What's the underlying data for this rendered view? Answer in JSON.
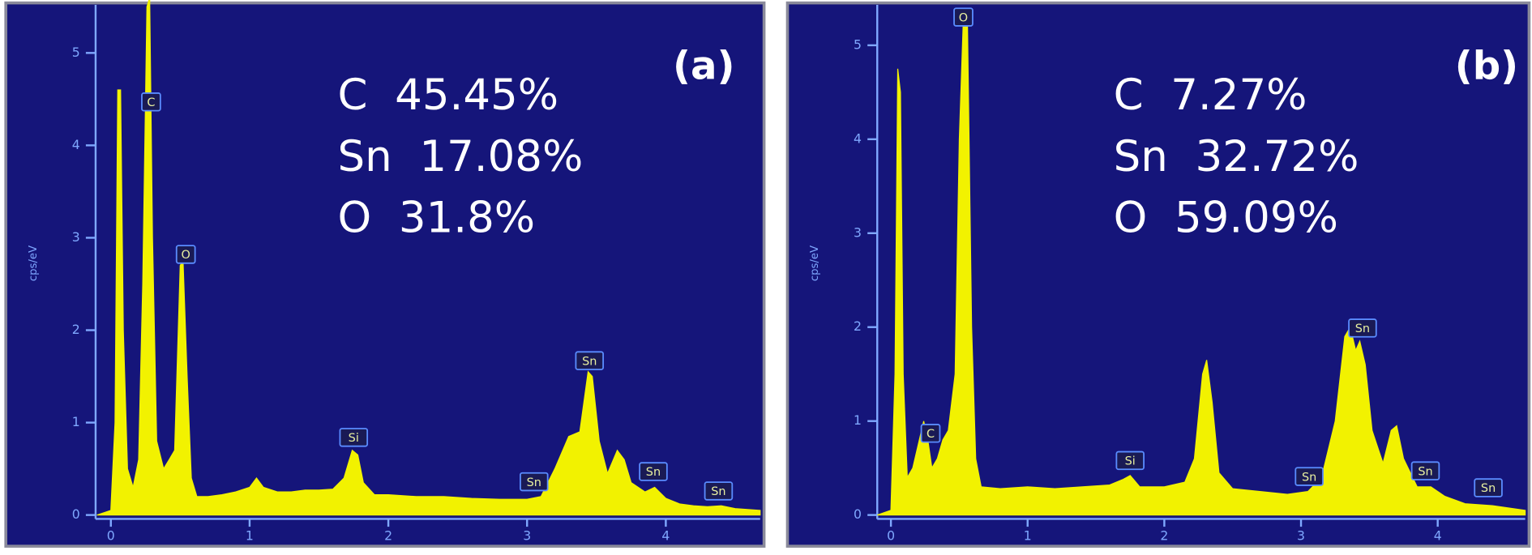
{
  "chart_data": [
    {
      "type": "area",
      "panel_label": "(a)",
      "y_label": "cps/eV",
      "composition": [
        "C  45.45%",
        "Sn  17.08%",
        "O  31.8%"
      ],
      "color": "#f2f200",
      "background": "#15157a",
      "xlim": [
        -0.11,
        4.68
      ],
      "ylim": [
        0,
        5.52
      ],
      "xticks": [
        0,
        1,
        2,
        3,
        4
      ],
      "yticks": [
        0,
        1,
        2,
        3,
        4,
        5
      ],
      "x": [
        -0.1,
        0.0,
        0.03,
        0.05,
        0.07,
        0.09,
        0.12,
        0.16,
        0.2,
        0.23,
        0.26,
        0.28,
        0.3,
        0.33,
        0.38,
        0.42,
        0.46,
        0.5,
        0.52,
        0.55,
        0.58,
        0.62,
        0.7,
        0.8,
        0.9,
        1.0,
        1.05,
        1.1,
        1.2,
        1.3,
        1.4,
        1.5,
        1.6,
        1.68,
        1.74,
        1.78,
        1.82,
        1.9,
        2.0,
        2.2,
        2.4,
        2.6,
        2.8,
        3.0,
        3.1,
        3.2,
        3.3,
        3.38,
        3.44,
        3.47,
        3.52,
        3.58,
        3.65,
        3.7,
        3.75,
        3.85,
        3.92,
        4.0,
        4.1,
        4.2,
        4.3,
        4.4,
        4.5,
        4.68
      ],
      "values": [
        0,
        0.05,
        1,
        4.6,
        4.6,
        2,
        0.5,
        0.3,
        0.6,
        2.5,
        5.5,
        5.6,
        3,
        0.8,
        0.5,
        0.6,
        0.7,
        2.7,
        2.75,
        1.5,
        0.4,
        0.2,
        0.2,
        0.22,
        0.25,
        0.3,
        0.4,
        0.3,
        0.25,
        0.25,
        0.27,
        0.27,
        0.28,
        0.4,
        0.7,
        0.65,
        0.35,
        0.22,
        0.22,
        0.2,
        0.2,
        0.18,
        0.17,
        0.17,
        0.2,
        0.5,
        0.85,
        0.9,
        1.55,
        1.5,
        0.8,
        0.45,
        0.7,
        0.6,
        0.35,
        0.25,
        0.3,
        0.18,
        0.12,
        0.1,
        0.09,
        0.1,
        0.07,
        0.05
      ],
      "annotations": [
        {
          "text": "C",
          "x": 0.29,
          "y": 4.47
        },
        {
          "text": "O",
          "x": 0.54,
          "y": 2.82
        },
        {
          "text": "Si",
          "x": 1.75,
          "y": 0.84
        },
        {
          "text": "Sn",
          "x": 3.45,
          "y": 1.67
        },
        {
          "text": "Sn",
          "x": 3.05,
          "y": 0.36
        },
        {
          "text": "Sn",
          "x": 3.91,
          "y": 0.47
        },
        {
          "text": "Sn",
          "x": 4.38,
          "y": 0.26
        }
      ]
    },
    {
      "type": "area",
      "panel_label": "(b)",
      "y_label": "cps/eV",
      "composition": [
        "C  7.27%",
        "Sn  32.72%",
        "O  59.09%"
      ],
      "color": "#f2f200",
      "background": "#15157a",
      "xlim": [
        -0.1,
        4.64
      ],
      "ylim": [
        0,
        5.43
      ],
      "xticks": [
        0,
        1,
        2,
        3,
        4
      ],
      "yticks": [
        0,
        1,
        2,
        3,
        4,
        5
      ],
      "x": [
        -0.1,
        0.0,
        0.03,
        0.05,
        0.07,
        0.09,
        0.12,
        0.16,
        0.2,
        0.24,
        0.27,
        0.3,
        0.34,
        0.38,
        0.42,
        0.47,
        0.5,
        0.53,
        0.56,
        0.59,
        0.62,
        0.66,
        0.8,
        1.0,
        1.2,
        1.4,
        1.6,
        1.7,
        1.75,
        1.82,
        2.0,
        2.15,
        2.22,
        2.28,
        2.31,
        2.35,
        2.4,
        2.5,
        2.7,
        2.9,
        3.05,
        3.15,
        3.25,
        3.32,
        3.36,
        3.4,
        3.43,
        3.47,
        3.52,
        3.6,
        3.66,
        3.7,
        3.75,
        3.85,
        3.95,
        4.05,
        4.2,
        4.4,
        4.64
      ],
      "values": [
        0,
        0.05,
        1.5,
        4.75,
        4.5,
        1.5,
        0.4,
        0.5,
        0.75,
        1.0,
        0.8,
        0.5,
        0.6,
        0.8,
        0.9,
        1.5,
        4,
        5.3,
        5.2,
        2,
        0.6,
        0.3,
        0.28,
        0.3,
        0.28,
        0.3,
        0.32,
        0.38,
        0.42,
        0.3,
        0.3,
        0.35,
        0.6,
        1.5,
        1.65,
        1.2,
        0.45,
        0.28,
        0.25,
        0.22,
        0.25,
        0.4,
        1.0,
        1.9,
        2.0,
        1.75,
        1.85,
        1.6,
        0.9,
        0.55,
        0.9,
        0.95,
        0.6,
        0.3,
        0.3,
        0.2,
        0.12,
        0.1,
        0.05
      ],
      "annotations": [
        {
          "text": "O",
          "x": 0.53,
          "y": 5.3
        },
        {
          "text": "C",
          "x": 0.29,
          "y": 0.87
        },
        {
          "text": "Si",
          "x": 1.75,
          "y": 0.58
        },
        {
          "text": "Sn",
          "x": 3.45,
          "y": 1.99
        },
        {
          "text": "Sn",
          "x": 3.06,
          "y": 0.41
        },
        {
          "text": "Sn",
          "x": 3.91,
          "y": 0.47
        },
        {
          "text": "Sn",
          "x": 4.37,
          "y": 0.29
        }
      ]
    }
  ]
}
